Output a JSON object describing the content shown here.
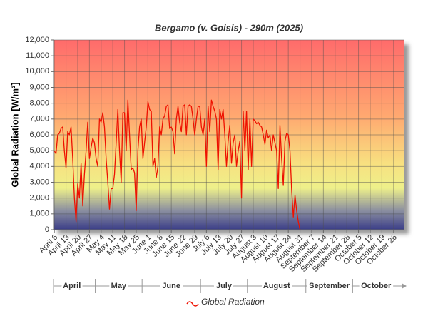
{
  "chart_data": {
    "type": "line",
    "title": "Bergamo (v. Goisis) - 290m (2025)",
    "y_label": "Global Radiation [W/m²]",
    "categories": [
      "April 6",
      null,
      null,
      null,
      null,
      null,
      null,
      "April 13",
      null,
      null,
      null,
      null,
      null,
      null,
      "April 20",
      null,
      null,
      null,
      null,
      null,
      null,
      "April 27",
      null,
      null,
      null,
      null,
      null,
      null,
      "May 4",
      null,
      null,
      null,
      null,
      null,
      null,
      "May 11",
      null,
      null,
      null,
      null,
      null,
      null,
      "May 18",
      null,
      null,
      null,
      null,
      null,
      null,
      "May 25",
      null,
      null,
      null,
      null,
      null,
      null,
      "June 1",
      null,
      null,
      null,
      null,
      null,
      null,
      "June 8",
      null,
      null,
      null,
      null,
      null,
      null,
      "June 15",
      null,
      null,
      null,
      null,
      null,
      null,
      "June 22",
      null,
      null,
      null,
      null,
      null,
      null,
      "June 29",
      null,
      null,
      null,
      null,
      null,
      null,
      "July 6",
      null,
      null,
      null,
      null,
      null,
      null,
      "July 13",
      null,
      null,
      null,
      null,
      null,
      null,
      "July 20",
      null,
      null,
      null,
      null,
      null,
      null,
      "July 27",
      null,
      null,
      null,
      null,
      null,
      null,
      "August 3",
      null,
      null,
      null,
      null,
      null,
      null,
      "August 10",
      null,
      null,
      null,
      null,
      null,
      null,
      "August 17",
      null,
      null,
      null,
      null,
      null,
      null,
      "August 24",
      null,
      null,
      null,
      null,
      null,
      null,
      "August 31",
      null,
      null,
      null,
      null,
      null,
      null,
      "September 7",
      null,
      null,
      null,
      null,
      null,
      null,
      "September 14",
      null,
      null,
      null,
      null,
      null,
      null,
      "September 21",
      null,
      null,
      null,
      null,
      null,
      null,
      "September 28",
      null,
      null,
      null,
      null,
      null,
      null,
      "October 5",
      null,
      null,
      null,
      null,
      null,
      null,
      "October 12",
      null,
      null,
      null,
      null,
      null,
      null,
      "October 19",
      null,
      null,
      null,
      null,
      null,
      null,
      "October 26",
      null,
      null,
      null,
      null,
      null,
      null
    ],
    "months": [
      "April",
      "May",
      "June",
      "July",
      "August",
      "September",
      "October"
    ],
    "series": [
      {
        "name": "Global Radiation",
        "color": "#ee1100",
        "values": [
          5000,
          4800,
          6000,
          6100,
          6400,
          6500,
          5000,
          3900,
          6200,
          6000,
          6500,
          4500,
          2000,
          500,
          2900,
          2000,
          4200,
          1500,
          3500,
          5000,
          6800,
          4500,
          5200,
          5800,
          5500,
          4500,
          4000,
          7000,
          6800,
          7400,
          6500,
          4500,
          3000,
          1300,
          2600,
          2600,
          3500,
          5500,
          7600,
          5000,
          3000,
          7400,
          7400,
          5000,
          8200,
          6000,
          3800,
          3900,
          3600,
          1200,
          5000,
          6500,
          7000,
          4500,
          5500,
          6500,
          8100,
          7600,
          7500,
          4000,
          4500,
          3300,
          4000,
          6500,
          6000,
          7000,
          7200,
          7800,
          7900,
          6400,
          6500,
          6200,
          4800,
          7000,
          7800,
          6800,
          6200,
          7800,
          7900,
          6000,
          7800,
          7900,
          7800,
          7000,
          6000,
          7000,
          7800,
          7800,
          6500,
          6000,
          7000,
          4000,
          7800,
          6200,
          8200,
          7800,
          7500,
          7000,
          3800,
          7600,
          7000,
          7600,
          6000,
          4000,
          5600,
          6600,
          4200,
          5500,
          6000,
          4000,
          5000,
          5600,
          2000,
          7500,
          5000,
          7500,
          3800,
          7000,
          4000,
          7000,
          6900,
          6700,
          6800,
          6600,
          6500,
          6000,
          5400,
          6300,
          5800,
          6000,
          5000,
          6000,
          5500,
          5000,
          2600,
          6600,
          4500,
          2800,
          5600,
          6100,
          6000,
          5000,
          2500,
          800,
          2200,
          1200,
          500,
          0,
          null,
          null,
          null,
          null,
          null,
          null,
          null,
          null,
          null,
          null,
          null,
          null,
          null,
          null,
          null,
          null,
          null,
          null,
          null,
          null,
          null,
          null,
          null,
          null,
          null,
          null,
          null,
          null,
          null,
          null,
          null,
          null,
          null,
          null,
          null,
          null,
          null,
          null,
          null,
          null,
          null,
          null,
          null,
          null,
          null,
          null,
          null,
          null,
          null,
          null,
          null,
          null,
          null,
          null,
          null,
          null,
          null,
          null,
          null,
          null,
          null,
          null
        ]
      }
    ],
    "ylim": [
      0,
      12000
    ],
    "yticks": [
      0,
      {
        "value": 1000,
        "label": "1,000"
      },
      {
        "value": 2000,
        "label": "2,000"
      },
      {
        "value": 3000,
        "label": "3,000"
      },
      {
        "value": 4000,
        "label": "4,000"
      },
      {
        "value": 5000,
        "label": "5,000"
      },
      {
        "value": 6000,
        "label": "6,000"
      },
      {
        "value": 7000,
        "label": "7,000"
      },
      {
        "value": 8000,
        "label": "8,000"
      },
      {
        "value": 9000,
        "label": "9,000"
      },
      {
        "value": 10000,
        "label": "10,000"
      },
      {
        "value": 11000,
        "label": "11,000"
      },
      {
        "value": 12000,
        "label": "12,000"
      }
    ],
    "grid": true,
    "legend": "bottom"
  }
}
